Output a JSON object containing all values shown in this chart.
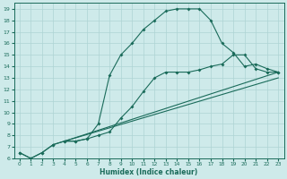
{
  "xlabel": "Humidex (Indice chaleur)",
  "bg_color": "#ceeaea",
  "grid_color": "#aed4d4",
  "line_color": "#1a6b5a",
  "xlim": [
    -0.5,
    23.5
  ],
  "ylim": [
    6,
    19.5
  ],
  "yticks": [
    6,
    7,
    8,
    9,
    10,
    11,
    12,
    13,
    14,
    15,
    16,
    17,
    18,
    19
  ],
  "xticks": [
    0,
    1,
    2,
    3,
    4,
    5,
    6,
    7,
    8,
    9,
    10,
    11,
    12,
    13,
    14,
    15,
    16,
    17,
    18,
    19,
    20,
    21,
    22,
    23
  ],
  "line1_x": [
    0,
    1,
    2,
    3,
    4,
    5,
    6,
    7,
    8,
    9,
    10,
    11,
    12,
    13,
    14,
    15,
    16,
    17,
    18,
    19,
    20,
    21,
    22,
    23
  ],
  "line1_y": [
    6.5,
    6.0,
    6.5,
    7.2,
    7.5,
    7.5,
    7.7,
    8.0,
    8.3,
    9.5,
    10.5,
    11.8,
    13.0,
    13.5,
    13.5,
    13.5,
    13.7,
    14.0,
    14.2,
    15.0,
    15.0,
    13.8,
    13.5,
    13.5
  ],
  "line2_x": [
    0,
    1,
    2,
    3,
    4,
    5,
    6,
    7,
    8,
    9,
    10,
    11,
    12,
    13,
    14,
    15,
    16,
    17,
    18,
    19,
    20,
    21,
    22,
    23
  ],
  "line2_y": [
    6.5,
    6.0,
    6.5,
    7.2,
    7.5,
    7.5,
    7.7,
    9.0,
    13.2,
    15.0,
    16.0,
    17.2,
    18.0,
    18.8,
    19.0,
    19.0,
    19.0,
    18.0,
    16.0,
    15.2,
    14.0,
    14.2,
    13.8,
    13.5
  ],
  "line3_x": [
    4,
    23
  ],
  "line3_y": [
    7.5,
    13.5
  ],
  "line4_x": [
    4,
    23
  ],
  "line4_y": [
    7.5,
    13.5
  ]
}
